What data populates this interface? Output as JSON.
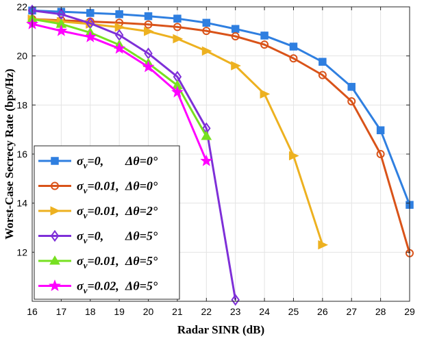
{
  "chart_data": {
    "type": "line",
    "title": "",
    "xlabel": "Radar SINR (dB)",
    "ylabel": "Worst-Case Secrecy Rate (bps/Hz)",
    "xlim": [
      16,
      29
    ],
    "ylim": [
      10,
      22
    ],
    "xticks": [
      "16",
      "17",
      "18",
      "19",
      "20",
      "21",
      "22",
      "23",
      "24",
      "25",
      "26",
      "27",
      "28",
      "29"
    ],
    "yticks": [
      "12",
      "14",
      "16",
      "18",
      "20",
      "22"
    ],
    "grid": true,
    "legend_position": "bottom-left",
    "series": [
      {
        "name": "σv=0, Δθ=0°",
        "legend": {
          "sigma": "0,",
          "theta": "0"
        },
        "color": "#2F7FE0",
        "marker": "square",
        "x": [
          16,
          17,
          18,
          19,
          20,
          21,
          22,
          23,
          24,
          25,
          26,
          27,
          28,
          29
        ],
        "values": [
          21.85,
          21.8,
          21.75,
          21.7,
          21.62,
          21.52,
          21.35,
          21.1,
          20.83,
          20.38,
          19.76,
          18.74,
          16.97,
          13.93
        ]
      },
      {
        "name": "σv=0.01, Δθ=0°",
        "legend": {
          "sigma": "0.01,",
          "theta": "0"
        },
        "color": "#D95319",
        "marker": "circle",
        "x": [
          16,
          17,
          18,
          19,
          20,
          21,
          22,
          23,
          24,
          25,
          26,
          27,
          28,
          29
        ],
        "values": [
          21.5,
          21.45,
          21.4,
          21.35,
          21.28,
          21.18,
          21.02,
          20.8,
          20.46,
          19.9,
          19.22,
          18.15,
          16.0,
          11.96
        ]
      },
      {
        "name": "σv=0.01, Δθ=2°",
        "legend": {
          "sigma": "0.01,",
          "theta": "2"
        },
        "color": "#EDB120",
        "marker": "triangle-right",
        "x": [
          16,
          17,
          18,
          19,
          20,
          21,
          22,
          23,
          24,
          25,
          26
        ],
        "values": [
          21.5,
          21.4,
          21.3,
          21.17,
          21.0,
          20.7,
          20.2,
          19.6,
          18.45,
          15.93,
          12.3
        ]
      },
      {
        "name": "σv=0, Δθ=5°",
        "legend": {
          "sigma": "0,",
          "theta": "5"
        },
        "color": "#7E2FD8",
        "marker": "diamond",
        "x": [
          16,
          17,
          18,
          19,
          20,
          21,
          22,
          23
        ],
        "values": [
          21.85,
          21.7,
          21.33,
          20.85,
          20.1,
          19.15,
          17.05,
          10.06
        ]
      },
      {
        "name": "σv=0.01, Δθ=5°",
        "legend": {
          "sigma": "0.01,",
          "theta": "5"
        },
        "color": "#77E021",
        "marker": "triangle-up",
        "x": [
          16,
          17,
          18,
          19,
          20,
          21,
          22
        ],
        "values": [
          21.5,
          21.3,
          20.95,
          20.45,
          19.7,
          18.8,
          16.73
        ]
      },
      {
        "name": "σv=0.02, Δθ=5°",
        "legend": {
          "sigma": "0.02,",
          "theta": "5"
        },
        "color": "#FF00FF",
        "marker": "star",
        "x": [
          16,
          17,
          18,
          19,
          20,
          21,
          22
        ],
        "values": [
          21.3,
          21.02,
          20.77,
          20.3,
          19.55,
          18.52,
          15.72
        ]
      }
    ]
  }
}
